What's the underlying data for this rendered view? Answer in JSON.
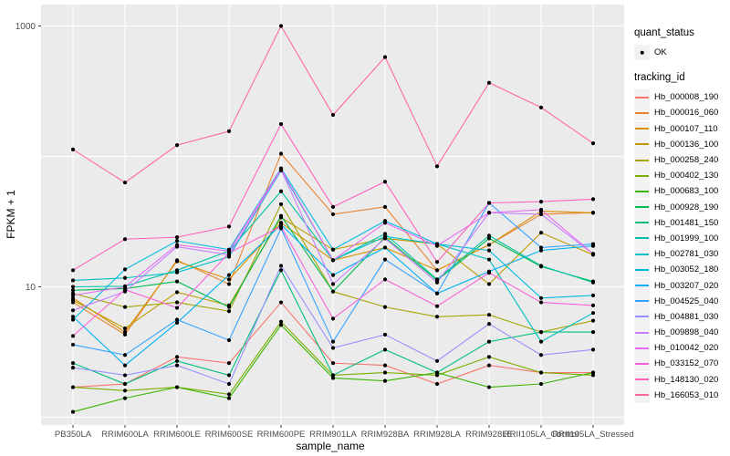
{
  "chart_data": {
    "type": "line",
    "title": "",
    "xlabel": "sample_name",
    "ylabel": "FPKM + 1",
    "y_scale": "log10",
    "y_axis_breaks": [
      10,
      1000
    ],
    "y_gridlines": [
      1,
      10,
      100,
      1000
    ],
    "ylim": [
      1,
      1100
    ],
    "grid": "on",
    "legend_position": "right",
    "point": {
      "shape": "filled-circle",
      "color": "#000000"
    },
    "categories": [
      "PB350LA",
      "RRIM600LA",
      "RRIM600LE",
      "RRIM600SE",
      "RRIM600PE",
      "RRIM901LA",
      "RRIM928BA",
      "RRIM928LA",
      "RRIM928LE",
      "RRII105LA_Control",
      "RRII105LA_Stressed"
    ],
    "series": [
      {
        "name": "Hb_000008_190",
        "color": "#F8766D",
        "values": [
          1.7,
          1.8,
          2.9,
          2.6,
          7.6,
          2.6,
          2.5,
          1.8,
          2.5,
          2.2,
          2.2
        ]
      },
      {
        "name": "Hb_000016_060",
        "color": "#EA8331",
        "values": [
          7.6,
          4.3,
          16,
          10.5,
          105,
          36,
          41,
          13.4,
          21,
          36,
          37
        ]
      },
      {
        "name": "Hb_000107_110",
        "color": "#D89000",
        "values": [
          8.2,
          4.5,
          15.7,
          11.4,
          31,
          16,
          20,
          13.4,
          21,
          38,
          37
        ]
      },
      {
        "name": "Hb_000136_100",
        "color": "#C09B00",
        "values": [
          7.9,
          4.8,
          9.1,
          7.2,
          34,
          19.3,
          23.5,
          21.3,
          10.5,
          26,
          17.6
        ]
      },
      {
        "name": "Hb_000258_240",
        "color": "#A3A500",
        "values": [
          8.9,
          7.0,
          7.6,
          6.5,
          43,
          9.2,
          7.0,
          5.9,
          6.1,
          4.5,
          5.5
        ]
      },
      {
        "name": "Hb_000402_130",
        "color": "#7CAE00",
        "values": [
          1.7,
          1.6,
          1.7,
          1.5,
          5.4,
          2.1,
          2.2,
          2.1,
          2.9,
          2.2,
          2.1
        ]
      },
      {
        "name": "Hb_000683_100",
        "color": "#39B600",
        "values": [
          1.1,
          1.4,
          1.7,
          1.4,
          5.1,
          2.0,
          1.9,
          2.2,
          1.7,
          1.8,
          2.2
        ]
      },
      {
        "name": "Hb_000928_190",
        "color": "#00BB4E",
        "values": [
          9.4,
          9.7,
          11,
          7.0,
          35,
          9.2,
          24,
          11.2,
          23.5,
          14.3,
          11
        ]
      },
      {
        "name": "Hb_001481_150",
        "color": "#00BF7D",
        "values": [
          2.6,
          1.8,
          2.7,
          2.1,
          13.4,
          2.1,
          3.3,
          2.2,
          3.8,
          4.5,
          4.5
        ]
      },
      {
        "name": "Hb_001999_100",
        "color": "#00C1A3",
        "values": [
          10,
          10.1,
          13.4,
          18.8,
          54,
          16,
          25.5,
          11.4,
          24.7,
          14.5,
          10.8
        ]
      },
      {
        "name": "Hb_002781_030",
        "color": "#00BFC4",
        "values": [
          11.2,
          11.7,
          12.9,
          17,
          78,
          16,
          24.3,
          21.3,
          16.2,
          3.8,
          6.3
        ]
      },
      {
        "name": "Hb_003052_180",
        "color": "#00BAE0",
        "values": [
          5.6,
          13.6,
          22.5,
          19.3,
          81,
          19.3,
          32,
          21.3,
          19,
          8.2,
          8.6
        ]
      },
      {
        "name": "Hb_003207_020",
        "color": "#00B0F6",
        "values": [
          5.9,
          2.5,
          5.3,
          12.3,
          30,
          12.3,
          20,
          8.9,
          13.1,
          19,
          20.6
        ]
      },
      {
        "name": "Hb_004525_040",
        "color": "#35A2FF",
        "values": [
          3.6,
          3.0,
          5.6,
          3.9,
          28,
          3.8,
          16.2,
          8.9,
          44,
          20,
          21.3
        ]
      },
      {
        "name": "Hb_004881_030",
        "color": "#9590FF",
        "values": [
          2.4,
          2.1,
          2.5,
          1.8,
          14.5,
          3.4,
          4.3,
          2.7,
          5.2,
          3.0,
          3.3
        ]
      },
      {
        "name": "Hb_009898_040",
        "color": "#C77CFF",
        "values": [
          6.6,
          9.2,
          20.3,
          17.6,
          79,
          10.5,
          23.5,
          10.8,
          37,
          36,
          17.9
        ]
      },
      {
        "name": "Hb_010042_020",
        "color": "#E76BF3",
        "values": [
          8.6,
          10,
          21,
          18.8,
          80,
          16,
          31,
          20.6,
          37,
          39,
          17.9
        ]
      },
      {
        "name": "Hb_033152_070",
        "color": "#FA62DB",
        "values": [
          4.2,
          9.5,
          6.9,
          18.2,
          29,
          5.7,
          11.4,
          7.1,
          12.8,
          7.6,
          7.2
        ]
      },
      {
        "name": "Hb_148130_020",
        "color": "#FF62BC",
        "values": [
          13.4,
          23.2,
          24,
          29,
          177,
          41,
          64,
          15.5,
          44,
          45,
          47
        ]
      },
      {
        "name": "Hb_166053_010",
        "color": "#FF6A98",
        "values": [
          113,
          63,
          122,
          156,
          1000,
          208,
          577,
          84,
          367,
          237,
          126
        ]
      }
    ],
    "legend": {
      "quant_status": {
        "title": "quant_status",
        "items": [
          "OK"
        ]
      },
      "tracking_id": {
        "title": "tracking_id"
      }
    }
  },
  "theme": {
    "panel_bg": "#EBEBEB",
    "grid_color": "#FFFFFF",
    "tick_color": "#333333",
    "tick_label_color": "#4D4D4D",
    "title_color": "#000000",
    "legend_key_bg": "#F2F2F2",
    "point_color": "#000000"
  }
}
